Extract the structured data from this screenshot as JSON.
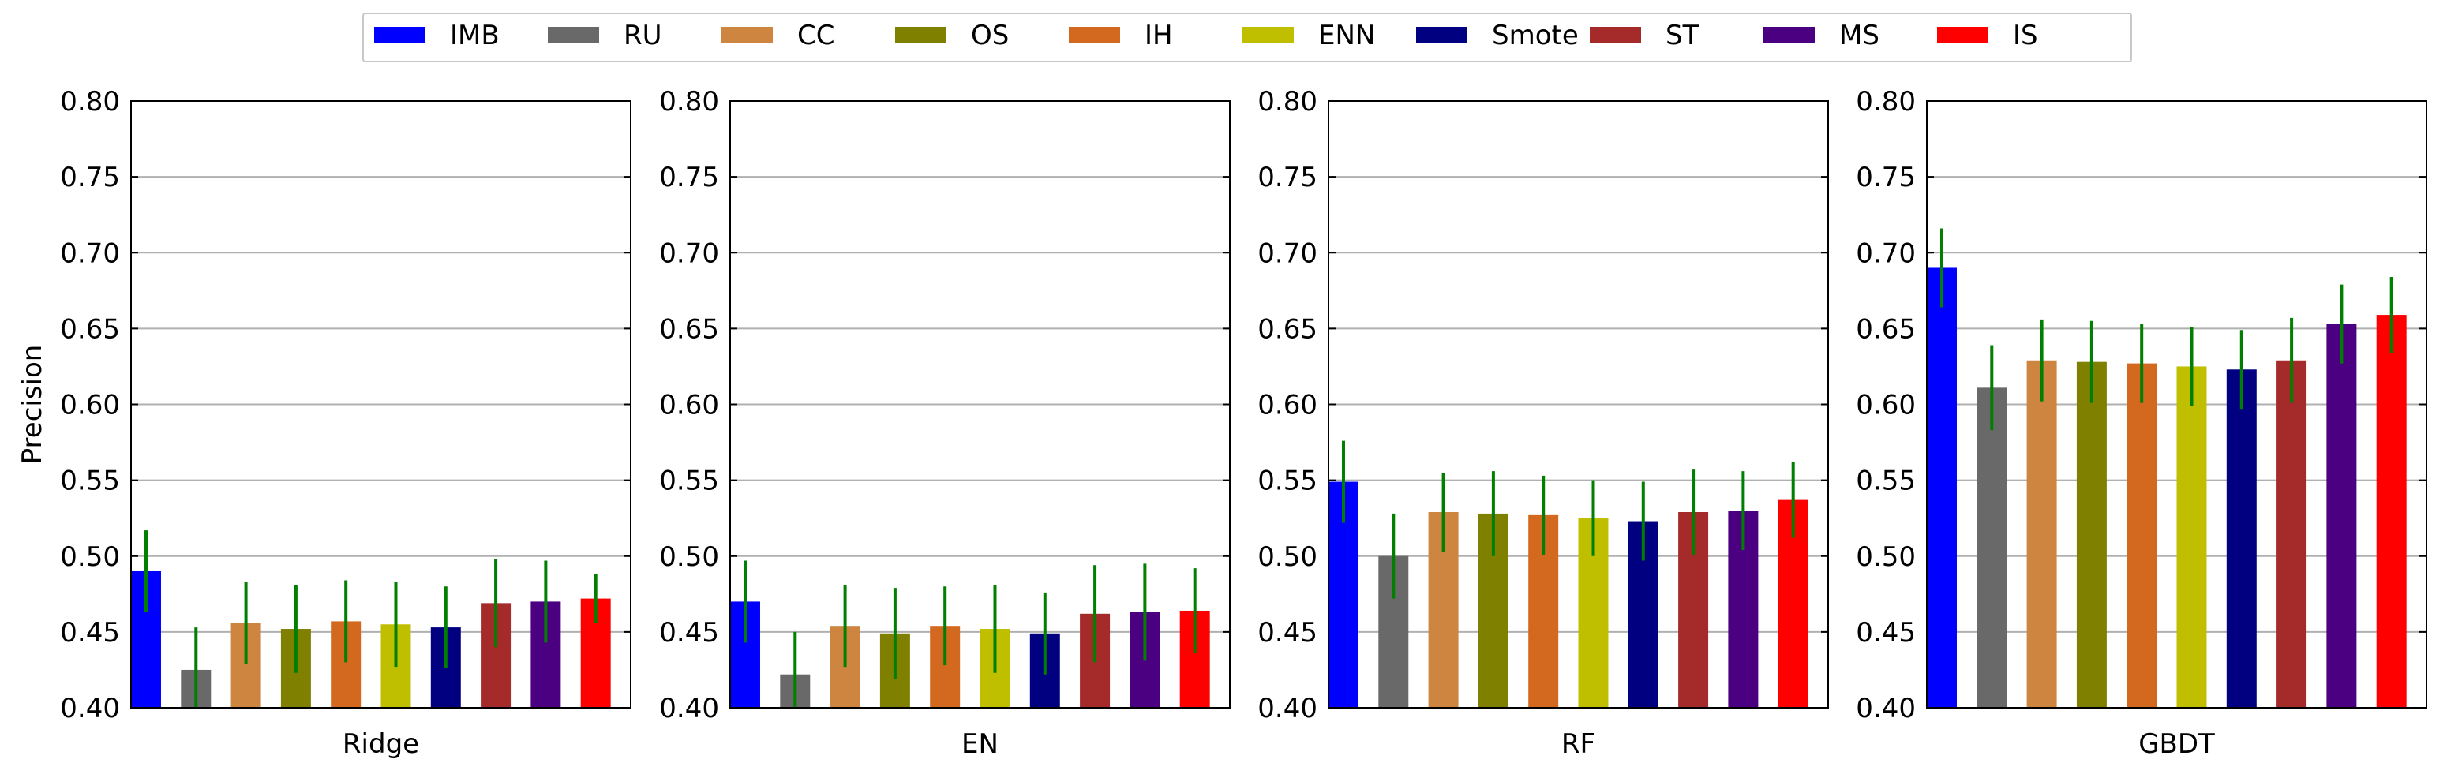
{
  "legend": {
    "placement": "top-center",
    "items": [
      {
        "label": "IMB",
        "color": "#0000ff"
      },
      {
        "label": "RU",
        "color": "#696969"
      },
      {
        "label": "CC",
        "color": "#cd853f"
      },
      {
        "label": "OS",
        "color": "#808000"
      },
      {
        "label": "IH",
        "color": "#d2691e"
      },
      {
        "label": "ENN",
        "color": "#bfbf00"
      },
      {
        "label": "Smote",
        "color": "#000080"
      },
      {
        "label": "ST",
        "color": "#a52a2a"
      },
      {
        "label": "MS",
        "color": "#4b0082"
      },
      {
        "label": "IS",
        "color": "#ff0000"
      }
    ]
  },
  "colors": {
    "error_bar": "#007f00",
    "grid": "#b0b0b0"
  },
  "chart_data": [
    {
      "type": "bar",
      "xlabel": "Ridge",
      "ylabel": "Precision",
      "ylim": [
        0.4,
        0.8
      ],
      "yticks": [
        "0.40",
        "0.45",
        "0.50",
        "0.55",
        "0.60",
        "0.65",
        "0.70",
        "0.75",
        "0.80"
      ],
      "grid": "horizontal",
      "categories": [
        "IMB",
        "RU",
        "CC",
        "OS",
        "IH",
        "ENN",
        "Smote",
        "ST",
        "MS",
        "IS"
      ],
      "values": [
        0.49,
        0.425,
        0.456,
        0.452,
        0.457,
        0.455,
        0.453,
        0.469,
        0.47,
        0.472
      ],
      "errors": [
        0.027,
        0.028,
        0.027,
        0.029,
        0.027,
        0.028,
        0.027,
        0.029,
        0.027,
        0.016
      ]
    },
    {
      "type": "bar",
      "xlabel": "EN",
      "ylabel": "",
      "ylim": [
        0.4,
        0.8
      ],
      "yticks": [
        "0.40",
        "0.45",
        "0.50",
        "0.55",
        "0.60",
        "0.65",
        "0.70",
        "0.75",
        "0.80"
      ],
      "grid": "horizontal",
      "categories": [
        "IMB",
        "RU",
        "CC",
        "OS",
        "IH",
        "ENN",
        "Smote",
        "ST",
        "MS",
        "IS"
      ],
      "values": [
        0.47,
        0.422,
        0.454,
        0.449,
        0.454,
        0.452,
        0.449,
        0.462,
        0.463,
        0.464
      ],
      "errors": [
        0.027,
        0.028,
        0.027,
        0.03,
        0.026,
        0.029,
        0.027,
        0.032,
        0.032,
        0.028
      ]
    },
    {
      "type": "bar",
      "xlabel": "RF",
      "ylabel": "",
      "ylim": [
        0.4,
        0.8
      ],
      "yticks": [
        "0.40",
        "0.45",
        "0.50",
        "0.55",
        "0.60",
        "0.65",
        "0.70",
        "0.75",
        "0.80"
      ],
      "grid": "horizontal",
      "categories": [
        "IMB",
        "RU",
        "CC",
        "OS",
        "IH",
        "ENN",
        "Smote",
        "ST",
        "MS",
        "IS"
      ],
      "values": [
        0.549,
        0.5,
        0.529,
        0.528,
        0.527,
        0.525,
        0.523,
        0.529,
        0.53,
        0.537
      ],
      "errors": [
        0.027,
        0.028,
        0.026,
        0.028,
        0.026,
        0.025,
        0.026,
        0.028,
        0.026,
        0.025
      ]
    },
    {
      "type": "bar",
      "xlabel": "GBDT",
      "ylabel": "",
      "ylim": [
        0.4,
        0.8
      ],
      "yticks": [
        "0.40",
        "0.45",
        "0.50",
        "0.55",
        "0.60",
        "0.65",
        "0.70",
        "0.75",
        "0.80"
      ],
      "grid": "horizontal",
      "categories": [
        "IMB",
        "RU",
        "CC",
        "OS",
        "IH",
        "ENN",
        "Smote",
        "ST",
        "MS",
        "IS"
      ],
      "values": [
        0.69,
        0.611,
        0.629,
        0.628,
        0.627,
        0.625,
        0.623,
        0.629,
        0.653,
        0.659
      ],
      "errors": [
        0.026,
        0.028,
        0.027,
        0.027,
        0.026,
        0.026,
        0.026,
        0.028,
        0.026,
        0.025
      ]
    }
  ]
}
